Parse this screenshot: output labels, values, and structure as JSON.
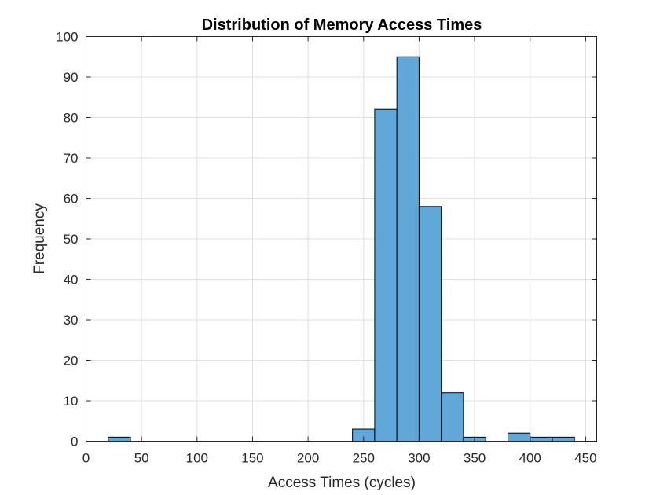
{
  "chart_data": {
    "type": "bar",
    "subtype": "histogram",
    "title": "Distribution of Memory Access Times",
    "xlabel": "Access Times (cycles)",
    "ylabel": "Frequency",
    "xlim": [
      0,
      460
    ],
    "ylim": [
      0,
      100
    ],
    "xticks": [
      0,
      50,
      100,
      150,
      200,
      250,
      300,
      350,
      400,
      450
    ],
    "yticks": [
      0,
      10,
      20,
      30,
      40,
      50,
      60,
      70,
      80,
      90,
      100
    ],
    "grid": true,
    "bar_color": "#61a8d8",
    "bar_edge_color": "#000000",
    "bin_width": 20,
    "bins": [
      {
        "x0": 20,
        "x1": 40,
        "value": 1
      },
      {
        "x0": 240,
        "x1": 260,
        "value": 3
      },
      {
        "x0": 260,
        "x1": 280,
        "value": 82
      },
      {
        "x0": 280,
        "x1": 300,
        "value": 95
      },
      {
        "x0": 300,
        "x1": 320,
        "value": 58
      },
      {
        "x0": 320,
        "x1": 340,
        "value": 12
      },
      {
        "x0": 340,
        "x1": 360,
        "value": 1
      },
      {
        "x0": 380,
        "x1": 400,
        "value": 2
      },
      {
        "x0": 400,
        "x1": 420,
        "value": 1
      },
      {
        "x0": 420,
        "x1": 440,
        "value": 1
      }
    ]
  }
}
